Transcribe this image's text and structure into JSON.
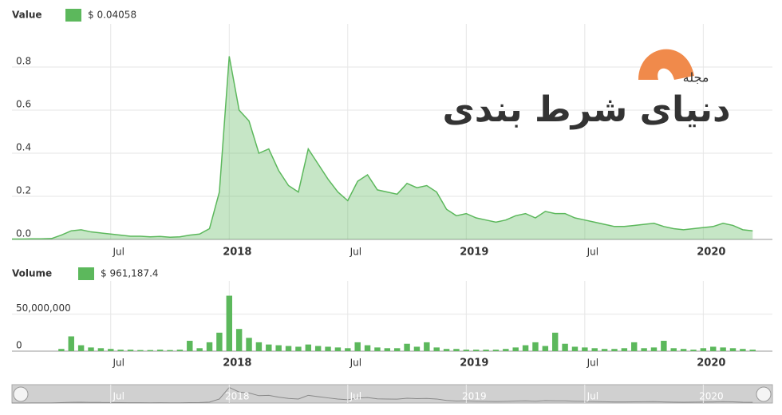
{
  "chart_data": [
    {
      "type": "area",
      "series": [
        {
          "name": "Value",
          "legend_value": "$ 0.04058",
          "color": "#5cb85c",
          "values": [
            0.002,
            0.002,
            0.003,
            0.003,
            0.004,
            0.02,
            0.04,
            0.045,
            0.035,
            0.03,
            0.025,
            0.02,
            0.015,
            0.015,
            0.012,
            0.014,
            0.01,
            0.012,
            0.02,
            0.025,
            0.05,
            0.22,
            0.85,
            0.6,
            0.55,
            0.4,
            0.42,
            0.32,
            0.25,
            0.22,
            0.42,
            0.35,
            0.28,
            0.22,
            0.18,
            0.27,
            0.3,
            0.23,
            0.22,
            0.21,
            0.26,
            0.24,
            0.25,
            0.22,
            0.14,
            0.11,
            0.12,
            0.1,
            0.09,
            0.08,
            0.09,
            0.11,
            0.12,
            0.1,
            0.13,
            0.12,
            0.12,
            0.1,
            0.09,
            0.08,
            0.07,
            0.06,
            0.06,
            0.065,
            0.07,
            0.075,
            0.06,
            0.05,
            0.045,
            0.05,
            0.055,
            0.06,
            0.075,
            0.065,
            0.045,
            0.04
          ]
        }
      ],
      "xlim": [
        0,
        77
      ],
      "xticks": [
        {
          "value": 10,
          "label": "Jul"
        },
        {
          "value": 22,
          "label": "2018"
        },
        {
          "value": 34,
          "label": "Jul"
        },
        {
          "value": 46,
          "label": "2019"
        },
        {
          "value": 58,
          "label": "Jul"
        },
        {
          "value": 70,
          "label": "2020"
        }
      ],
      "ylim": [
        0,
        1
      ],
      "yticks": [
        {
          "value": 0,
          "label": "0.0"
        },
        0.2,
        0.4,
        0.6,
        0.8
      ],
      "grid": true
    },
    {
      "type": "bar",
      "series": [
        {
          "name": "Volume",
          "legend_value": "$ 961,187.4",
          "color": "#5cb85c",
          "values": [
            0,
            0,
            0,
            0,
            0,
            3000000,
            20000000,
            8000000,
            5000000,
            4000000,
            3000000,
            2000000,
            2000000,
            1500000,
            1500000,
            2000000,
            1500000,
            2000000,
            14000000,
            4000000,
            12000000,
            25000000,
            75000000,
            30000000,
            18000000,
            12000000,
            9000000,
            8000000,
            7000000,
            6000000,
            9000000,
            7000000,
            6000000,
            5000000,
            4000000,
            12000000,
            8000000,
            5000000,
            4000000,
            4000000,
            10000000,
            6000000,
            12000000,
            5000000,
            3000000,
            3000000,
            2000000,
            2000000,
            2000000,
            2000000,
            3000000,
            5000000,
            8000000,
            12000000,
            7000000,
            25000000,
            10000000,
            6000000,
            5000000,
            4000000,
            3000000,
            3000000,
            4000000,
            12000000,
            4000000,
            5000000,
            14000000,
            4000000,
            3000000,
            2000000,
            4000000,
            6000000,
            5000000,
            4000000,
            3000000,
            2000000
          ]
        }
      ],
      "xlim": [
        0,
        77
      ],
      "xticks": [
        {
          "value": 10,
          "label": "Jul"
        },
        {
          "value": 22,
          "label": "2018"
        },
        {
          "value": 34,
          "label": "Jul"
        },
        {
          "value": 46,
          "label": "2019"
        },
        {
          "value": 58,
          "label": "Jul"
        },
        {
          "value": 70,
          "label": "2020"
        }
      ],
      "ylim": [
        0,
        95000000
      ],
      "yticks": [
        0,
        {
          "value": 50000000,
          "label": "50,000,000"
        }
      ],
      "grid": true
    }
  ],
  "watermark": {
    "title": "دنیای شرط بندی",
    "subtitle": "مجله"
  }
}
